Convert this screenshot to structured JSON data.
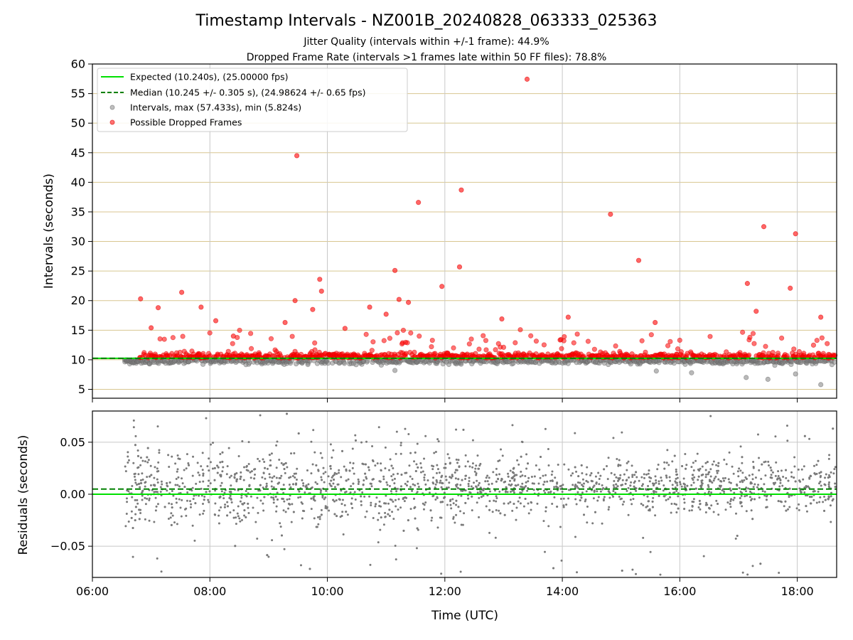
{
  "chart_data": [
    {
      "type": "scatter",
      "title": "Timestamp Intervals - NZ001B_20240828_063333_025363",
      "subtitle_1": "Jitter Quality (intervals within +/-1 frame): 44.9%",
      "subtitle_2": "Dropped Frame Rate (intervals >1 frames late within 50 FF files): 78.8%",
      "xlabel": "",
      "ylabel": "Intervals (seconds)",
      "xlim_hours": [
        6.0,
        18.67
      ],
      "ylim": [
        3.5,
        60
      ],
      "y_ticks": [
        5,
        10,
        15,
        20,
        25,
        30,
        35,
        40,
        45,
        50,
        55,
        60
      ],
      "y_tick_labels": [
        "5",
        "10",
        "15",
        "20",
        "25",
        "30",
        "35",
        "40",
        "45",
        "50",
        "55",
        "60"
      ],
      "grid": true,
      "legend_position": "top-left",
      "expected_interval": 10.24,
      "median_interval": 10.245,
      "series": [
        {
          "name": "Expected (10.240s), (25.00000 fps)",
          "style": "solid-line",
          "color": "#00e000"
        },
        {
          "name": "Median (10.245 +/- 0.305 s), (24.98624 +/- 0.65 fps)",
          "style": "dashed-line",
          "color": "#008000"
        },
        {
          "name": "Intervals, max (57.433s), min (5.824s)",
          "style": "marker",
          "color": "#808080"
        },
        {
          "name": "Possible Dropped Frames",
          "style": "marker",
          "color": "#ff0000"
        }
      ],
      "dropped_outliers": [
        {
          "x": 6.82,
          "y": 20.3
        },
        {
          "x": 7.0,
          "y": 15.4
        },
        {
          "x": 7.12,
          "y": 18.8
        },
        {
          "x": 7.52,
          "y": 21.4
        },
        {
          "x": 7.85,
          "y": 18.9
        },
        {
          "x": 8.1,
          "y": 16.6
        },
        {
          "x": 8.4,
          "y": 14.0
        },
        {
          "x": 9.28,
          "y": 16.3
        },
        {
          "x": 9.45,
          "y": 20.0
        },
        {
          "x": 9.48,
          "y": 44.5
        },
        {
          "x": 9.75,
          "y": 18.5
        },
        {
          "x": 9.87,
          "y": 23.6
        },
        {
          "x": 9.9,
          "y": 21.6
        },
        {
          "x": 10.3,
          "y": 15.3
        },
        {
          "x": 10.72,
          "y": 18.9
        },
        {
          "x": 11.0,
          "y": 17.7
        },
        {
          "x": 11.15,
          "y": 25.1
        },
        {
          "x": 11.22,
          "y": 20.2
        },
        {
          "x": 11.38,
          "y": 19.7
        },
        {
          "x": 11.55,
          "y": 36.6
        },
        {
          "x": 11.95,
          "y": 22.4
        },
        {
          "x": 12.25,
          "y": 25.7
        },
        {
          "x": 12.28,
          "y": 38.7
        },
        {
          "x": 12.97,
          "y": 16.9
        },
        {
          "x": 13.4,
          "y": 57.43
        },
        {
          "x": 14.1,
          "y": 17.2
        },
        {
          "x": 14.82,
          "y": 34.6
        },
        {
          "x": 15.3,
          "y": 26.8
        },
        {
          "x": 15.58,
          "y": 16.3
        },
        {
          "x": 17.15,
          "y": 22.9
        },
        {
          "x": 17.3,
          "y": 18.2
        },
        {
          "x": 17.43,
          "y": 32.5
        },
        {
          "x": 17.88,
          "y": 22.1
        },
        {
          "x": 17.97,
          "y": 31.3
        },
        {
          "x": 18.4,
          "y": 17.2
        }
      ],
      "gray_outliers": [
        {
          "x": 17.13,
          "y": 7.0
        },
        {
          "x": 17.5,
          "y": 6.7
        },
        {
          "x": 17.97,
          "y": 7.6
        },
        {
          "x": 18.4,
          "y": 5.8
        },
        {
          "x": 16.2,
          "y": 7.8
        },
        {
          "x": 15.6,
          "y": 8.1
        },
        {
          "x": 11.15,
          "y": 8.2
        }
      ],
      "data_start_hours": 6.55
    },
    {
      "type": "scatter",
      "xlabel": "Time (UTC)",
      "ylabel": "Residuals (seconds)",
      "xlim_hours": [
        6.0,
        18.67
      ],
      "ylim": [
        -0.08,
        0.08
      ],
      "x_ticks_hours": [
        6,
        8,
        10,
        12,
        14,
        16,
        18
      ],
      "x_tick_labels": [
        "06:00",
        "08:00",
        "10:00",
        "12:00",
        "14:00",
        "16:00",
        "18:00"
      ],
      "y_ticks": [
        0.05,
        0.0,
        -0.05
      ],
      "y_tick_labels": [
        "0.05",
        "0.00",
        "−0.05"
      ],
      "expected_residual": 0.0,
      "median_residual": 0.005,
      "grid": true
    }
  ]
}
